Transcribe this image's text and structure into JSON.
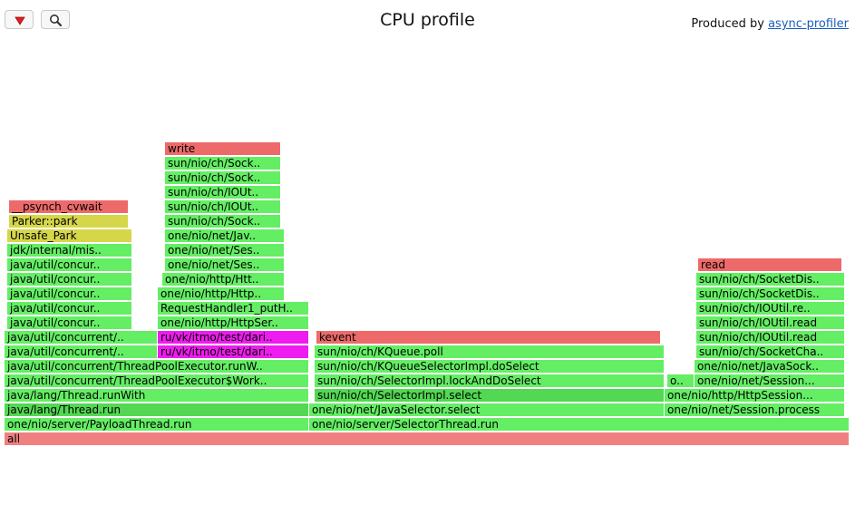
{
  "toolbar": {
    "reverse_icon": "triangle-down-icon",
    "search_icon": "magnifier-icon"
  },
  "header": {
    "title": "CPU profile",
    "credit_prefix": "Produced by ",
    "credit_link": "async-profiler"
  },
  "palette": {
    "green": "#64ee64",
    "green_dark": "#52d852",
    "red": "#ee6a6a",
    "yellow": "#d6d64a",
    "magenta": "#ee1cee",
    "cyan": "#58dcdc",
    "all": "#f08080"
  },
  "flame": {
    "frames": [
      [
        "all",
        5,
        937,
        0,
        "all"
      ],
      [
        "one/nio/server/PayloadThread.run",
        5,
        341,
        1,
        "green"
      ],
      [
        "one/nio/server/SelectorThread.run",
        341,
        937,
        1,
        "green"
      ],
      [
        "java/lang/Thread.run",
        5,
        341,
        2,
        "green_dark"
      ],
      [
        "one/nio/net/JavaSelector.select",
        341,
        733,
        2,
        "green"
      ],
      [
        "one/nio/net/Session.process",
        733,
        932,
        2,
        "green"
      ],
      [
        "java/lang/Thread.runWith",
        5,
        341,
        3,
        "green"
      ],
      [
        "sun/nio/ch/SelectorImpl.select",
        347,
        733,
        3,
        "green_dark"
      ],
      [
        "one/nio/http/HttpSession.process",
        733,
        932,
        3,
        "green"
      ],
      [
        "java/util/concurrent/ThreadPoolExecutor$Worker.run",
        5,
        341,
        4,
        "green"
      ],
      [
        "sun/nio/ch/SelectorImpl.lockAndDoSelect",
        347,
        733,
        4,
        "green"
      ],
      [
        "one/nio/net/Session.read",
        736,
        766,
        4,
        "green"
      ],
      [
        "one/nio/net/Session.read",
        766,
        932,
        4,
        "green"
      ],
      [
        "java/util/concurrent/ThreadPoolExecutor.runWorker",
        5,
        341,
        5,
        "green"
      ],
      [
        "sun/nio/ch/KQueueSelectorImpl.doSelect",
        347,
        733,
        5,
        "green"
      ],
      [
        "one/nio/net/JavaSocket.read",
        766,
        932,
        5,
        "green"
      ],
      [
        "java/util/concurrent/LinkedBlockingQueue.take",
        5,
        174,
        6,
        "green"
      ],
      [
        "ru/vk/itmo/test/dariasupriadkina/server/ServerImpl.lambda",
        174,
        341,
        6,
        "magenta"
      ],
      [
        "sun/nio/ch/KQueue.poll",
        347,
        733,
        6,
        "green"
      ],
      [
        "sun/nio/ch/SocketChannelImpl.read",
        768,
        932,
        6,
        "green"
      ],
      [
        "java/util/concurrent/LinkedBlockingQueue.take",
        5,
        174,
        7,
        "green"
      ],
      [
        "ru/vk/itmo/test/dariasupriadkina/server/ServerImpl.handle",
        174,
        341,
        7,
        "magenta"
      ],
      [
        "kevent",
        349,
        729,
        7,
        "red"
      ],
      [
        "sun/nio/ch/IOUtil.read",
        768,
        932,
        7,
        "green"
      ],
      [
        "java/util/concurrent/locks/AbstractQueuedSynchronizer.await",
        8,
        146,
        8,
        "green"
      ],
      [
        "one/nio/http/HttpServer.handleRequest",
        174,
        341,
        8,
        "green"
      ],
      [
        "sun/nio/ch/IOUtil.read",
        768,
        932,
        8,
        "green"
      ],
      [
        "java/util/concurrent/ForkJoinPool.managedBlock",
        8,
        146,
        9,
        "green"
      ],
      [
        "RequestHandler1_putHandler.handleRequest",
        174,
        341,
        9,
        "green"
      ],
      [
        "sun/nio/ch/IOUtil.readIntoNativeBuffer",
        768,
        932,
        9,
        "green"
      ],
      [
        "java/util/concurrent/locks/LockSupport.park",
        8,
        146,
        10,
        "green"
      ],
      [
        "one/nio/http/HttpSession.sendResponse",
        174,
        314,
        10,
        "green"
      ],
      [
        "sun/nio/ch/SocketDispatcher.read",
        768,
        932,
        10,
        "green"
      ],
      [
        "java/util/concurrent/locks/LockSupport.parkNanos",
        8,
        146,
        11,
        "green"
      ],
      [
        "one/nio/http/HttpSession.writeResponse",
        179,
        314,
        11,
        "green"
      ],
      [
        "sun/nio/ch/SocketDispatcher.read0",
        768,
        932,
        11,
        "green"
      ],
      [
        "java/util/concurrent/locks/LockSupport.park",
        8,
        146,
        12,
        "green"
      ],
      [
        "one/nio/net/Session.write",
        182,
        314,
        12,
        "green"
      ],
      [
        "read",
        770,
        929,
        12,
        "red"
      ],
      [
        "jdk/internal/misc/Unsafe.park",
        8,
        146,
        13,
        "green"
      ],
      [
        "one/nio/net/Session$ArrayQueueItem.write",
        182,
        314,
        13,
        "green"
      ],
      [
        "Unsafe_Park",
        8,
        146,
        14,
        "yellow"
      ],
      [
        "one/nio/net/JavaSocket.write",
        182,
        314,
        14,
        "green"
      ],
      [
        "Parker::park",
        10,
        142,
        15,
        "yellow"
      ],
      [
        "sun/nio/ch/SocketChannelImpl.write",
        182,
        310,
        15,
        "green"
      ],
      [
        "__psynch_cvwait",
        10,
        142,
        16,
        "red"
      ],
      [
        "sun/nio/ch/IOUtil.write",
        182,
        310,
        16,
        "green"
      ],
      [
        "sun/nio/ch/IOUtil.writeFromNativeBuffer",
        182,
        310,
        17,
        "green"
      ],
      [
        "sun/nio/ch/SocketDispatcher.write",
        182,
        310,
        18,
        "green"
      ],
      [
        "sun/nio/ch/SocketDispatcher.write0",
        182,
        310,
        19,
        "green"
      ],
      [
        "write",
        182,
        310,
        20,
        "red"
      ]
    ]
  }
}
